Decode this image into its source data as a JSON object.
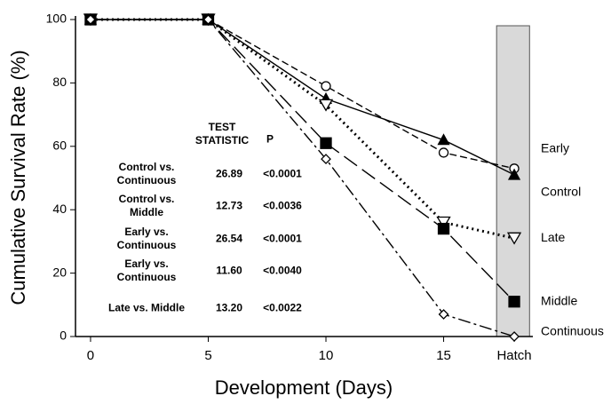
{
  "chart_data": {
    "type": "line",
    "xlabel": "Development (Days)",
    "ylabel": "Cumulative Survival Rate  (%)",
    "x": [
      0,
      5,
      10,
      15,
      18
    ],
    "xlim": [
      -0.64,
      18.79
    ],
    "xticks": [
      0,
      5,
      10,
      15,
      {
        "value": 18,
        "label": "Hatch"
      }
    ],
    "ylim": [
      0,
      100
    ],
    "yticks": [
      0,
      20,
      40,
      60,
      80,
      100
    ],
    "shaded_band": [
      17.25,
      18.65
    ],
    "series": [
      {
        "name": "Early",
        "color": "#000000",
        "dash": "dashed",
        "marker": "circle",
        "filled": false,
        "values": [
          100,
          100,
          79,
          58,
          53
        ]
      },
      {
        "name": "Control",
        "color": "#000000",
        "dash": "solid",
        "marker": "triangle-up",
        "filled": true,
        "values": [
          100,
          100,
          75,
          62,
          51
        ]
      },
      {
        "name": "Late",
        "color": "#000000",
        "dash": "dotted",
        "marker": "triangle-down",
        "filled": false,
        "values": [
          100,
          100,
          73,
          36,
          31
        ]
      },
      {
        "name": "Middle",
        "color": "#000000",
        "dash": "long-dashed",
        "marker": "square",
        "filled": true,
        "values": [
          100,
          100,
          61,
          34,
          11
        ]
      },
      {
        "name": "Continuous",
        "color": "#000000",
        "dash": "dash-dot",
        "marker": "diamond",
        "filled": false,
        "values": [
          100,
          100,
          56,
          7,
          0
        ]
      }
    ],
    "stats_table": {
      "headers": [
        "TEST STATISTIC",
        "P"
      ],
      "rows": [
        [
          "Control vs. Continuous",
          "26.89",
          "<0.0001"
        ],
        [
          "Control vs. Middle",
          "12.73",
          "<0.0036"
        ],
        [
          "Early vs. Continuous",
          "26.54",
          "<0.0001"
        ],
        [
          "Early vs. Continuous",
          "11.60",
          "<0.0040"
        ],
        [
          "Late vs. Middle",
          "13.20",
          "<0.0022"
        ]
      ]
    }
  }
}
